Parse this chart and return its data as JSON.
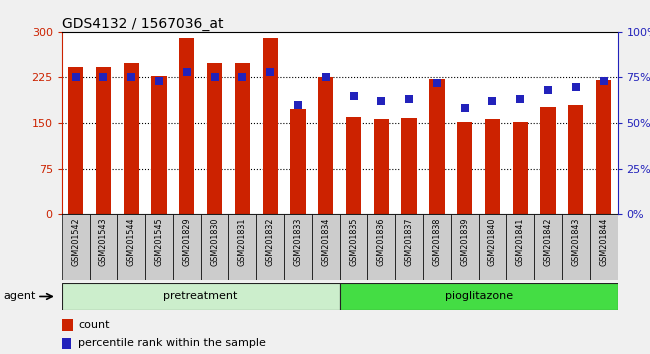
{
  "title": "GDS4132 / 1567036_at",
  "samples": [
    "GSM201542",
    "GSM201543",
    "GSM201544",
    "GSM201545",
    "GSM201829",
    "GSM201830",
    "GSM201831",
    "GSM201832",
    "GSM201833",
    "GSM201834",
    "GSM201835",
    "GSM201836",
    "GSM201837",
    "GSM201838",
    "GSM201839",
    "GSM201840",
    "GSM201841",
    "GSM201842",
    "GSM201843",
    "GSM201844"
  ],
  "counts": [
    242,
    242,
    248,
    228,
    290,
    248,
    248,
    290,
    173,
    226,
    160,
    156,
    158,
    222,
    152,
    157,
    152,
    176,
    180,
    220
  ],
  "percentiles": [
    75,
    75,
    75,
    73,
    78,
    75,
    75,
    78,
    60,
    75,
    65,
    62,
    63,
    72,
    58,
    62,
    63,
    68,
    70,
    73
  ],
  "group_labels": [
    "pretreatment",
    "pioglitazone"
  ],
  "group_split": 10,
  "left_ylim": [
    0,
    300
  ],
  "left_yticks": [
    0,
    75,
    150,
    225,
    300
  ],
  "right_ylim": [
    0,
    100
  ],
  "right_yticks": [
    0,
    25,
    50,
    75,
    100
  ],
  "bar_color": "#cc2200",
  "dot_color": "#2222bb",
  "pretreatment_color": "#cceecc",
  "pioglitazone_color": "#44dd44",
  "ticklabel_bg": "#cccccc",
  "bar_width": 0.55,
  "agent_label": "agent",
  "dot_size": 28,
  "title_fontsize": 10,
  "fig_bg": "#f0f0f0"
}
